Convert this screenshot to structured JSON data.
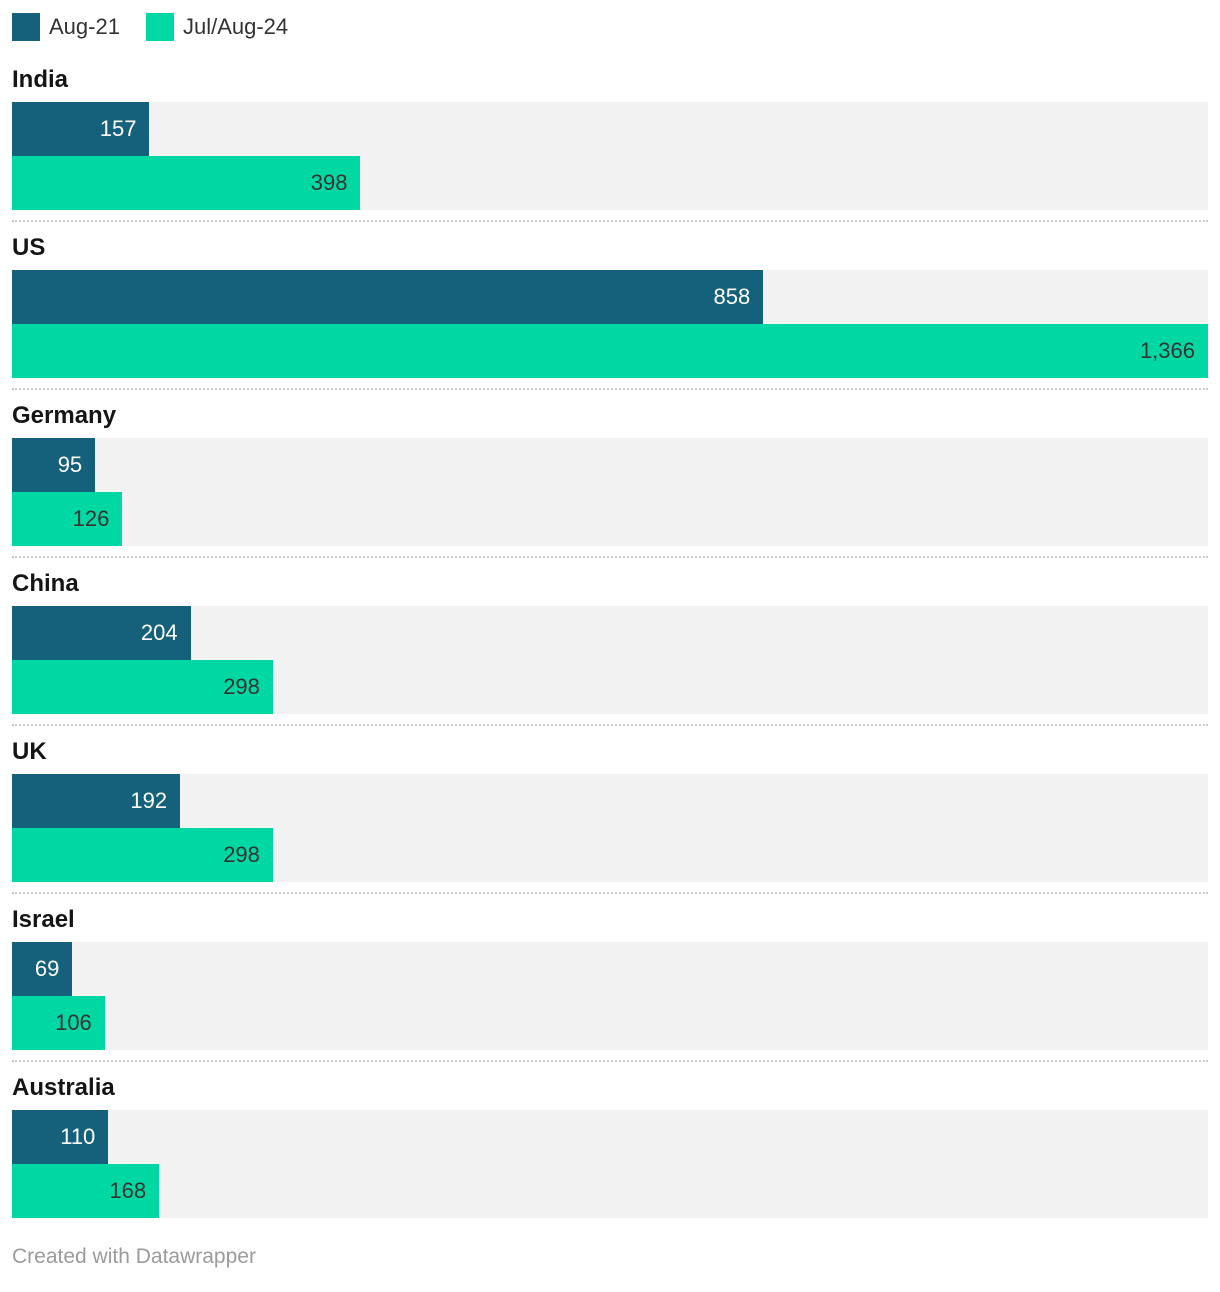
{
  "legend": {
    "position": "top",
    "items": [
      {
        "label": "Aug-21",
        "color": "#15607a"
      },
      {
        "label": "Jul/Aug-24",
        "color": "#00d8a4"
      }
    ]
  },
  "chart_data": {
    "type": "bar",
    "orientation": "horizontal",
    "grouped": true,
    "categories": [
      "India",
      "US",
      "Germany",
      "China",
      "UK",
      "Israel",
      "Australia"
    ],
    "series": [
      {
        "name": "Aug-21",
        "color": "#15607a",
        "label_color": "#ffffff",
        "values": [
          157,
          858,
          95,
          204,
          192,
          69,
          110
        ],
        "labels": [
          "157",
          "858",
          "95",
          "204",
          "192",
          "69",
          "110"
        ]
      },
      {
        "name": "Jul/Aug-24",
        "color": "#00d8a4",
        "label_color": "#333333",
        "values": [
          398,
          1366,
          126,
          298,
          298,
          106,
          168
        ],
        "labels": [
          "398",
          "1,366",
          "126",
          "298",
          "298",
          "106",
          "168"
        ]
      }
    ],
    "xmax": 1366,
    "track_color": "#f2f2f2",
    "grid": false,
    "value_labels_position": "inside-end",
    "legend_position": "top"
  },
  "footer": {
    "attribution": "Created with Datawrapper"
  }
}
